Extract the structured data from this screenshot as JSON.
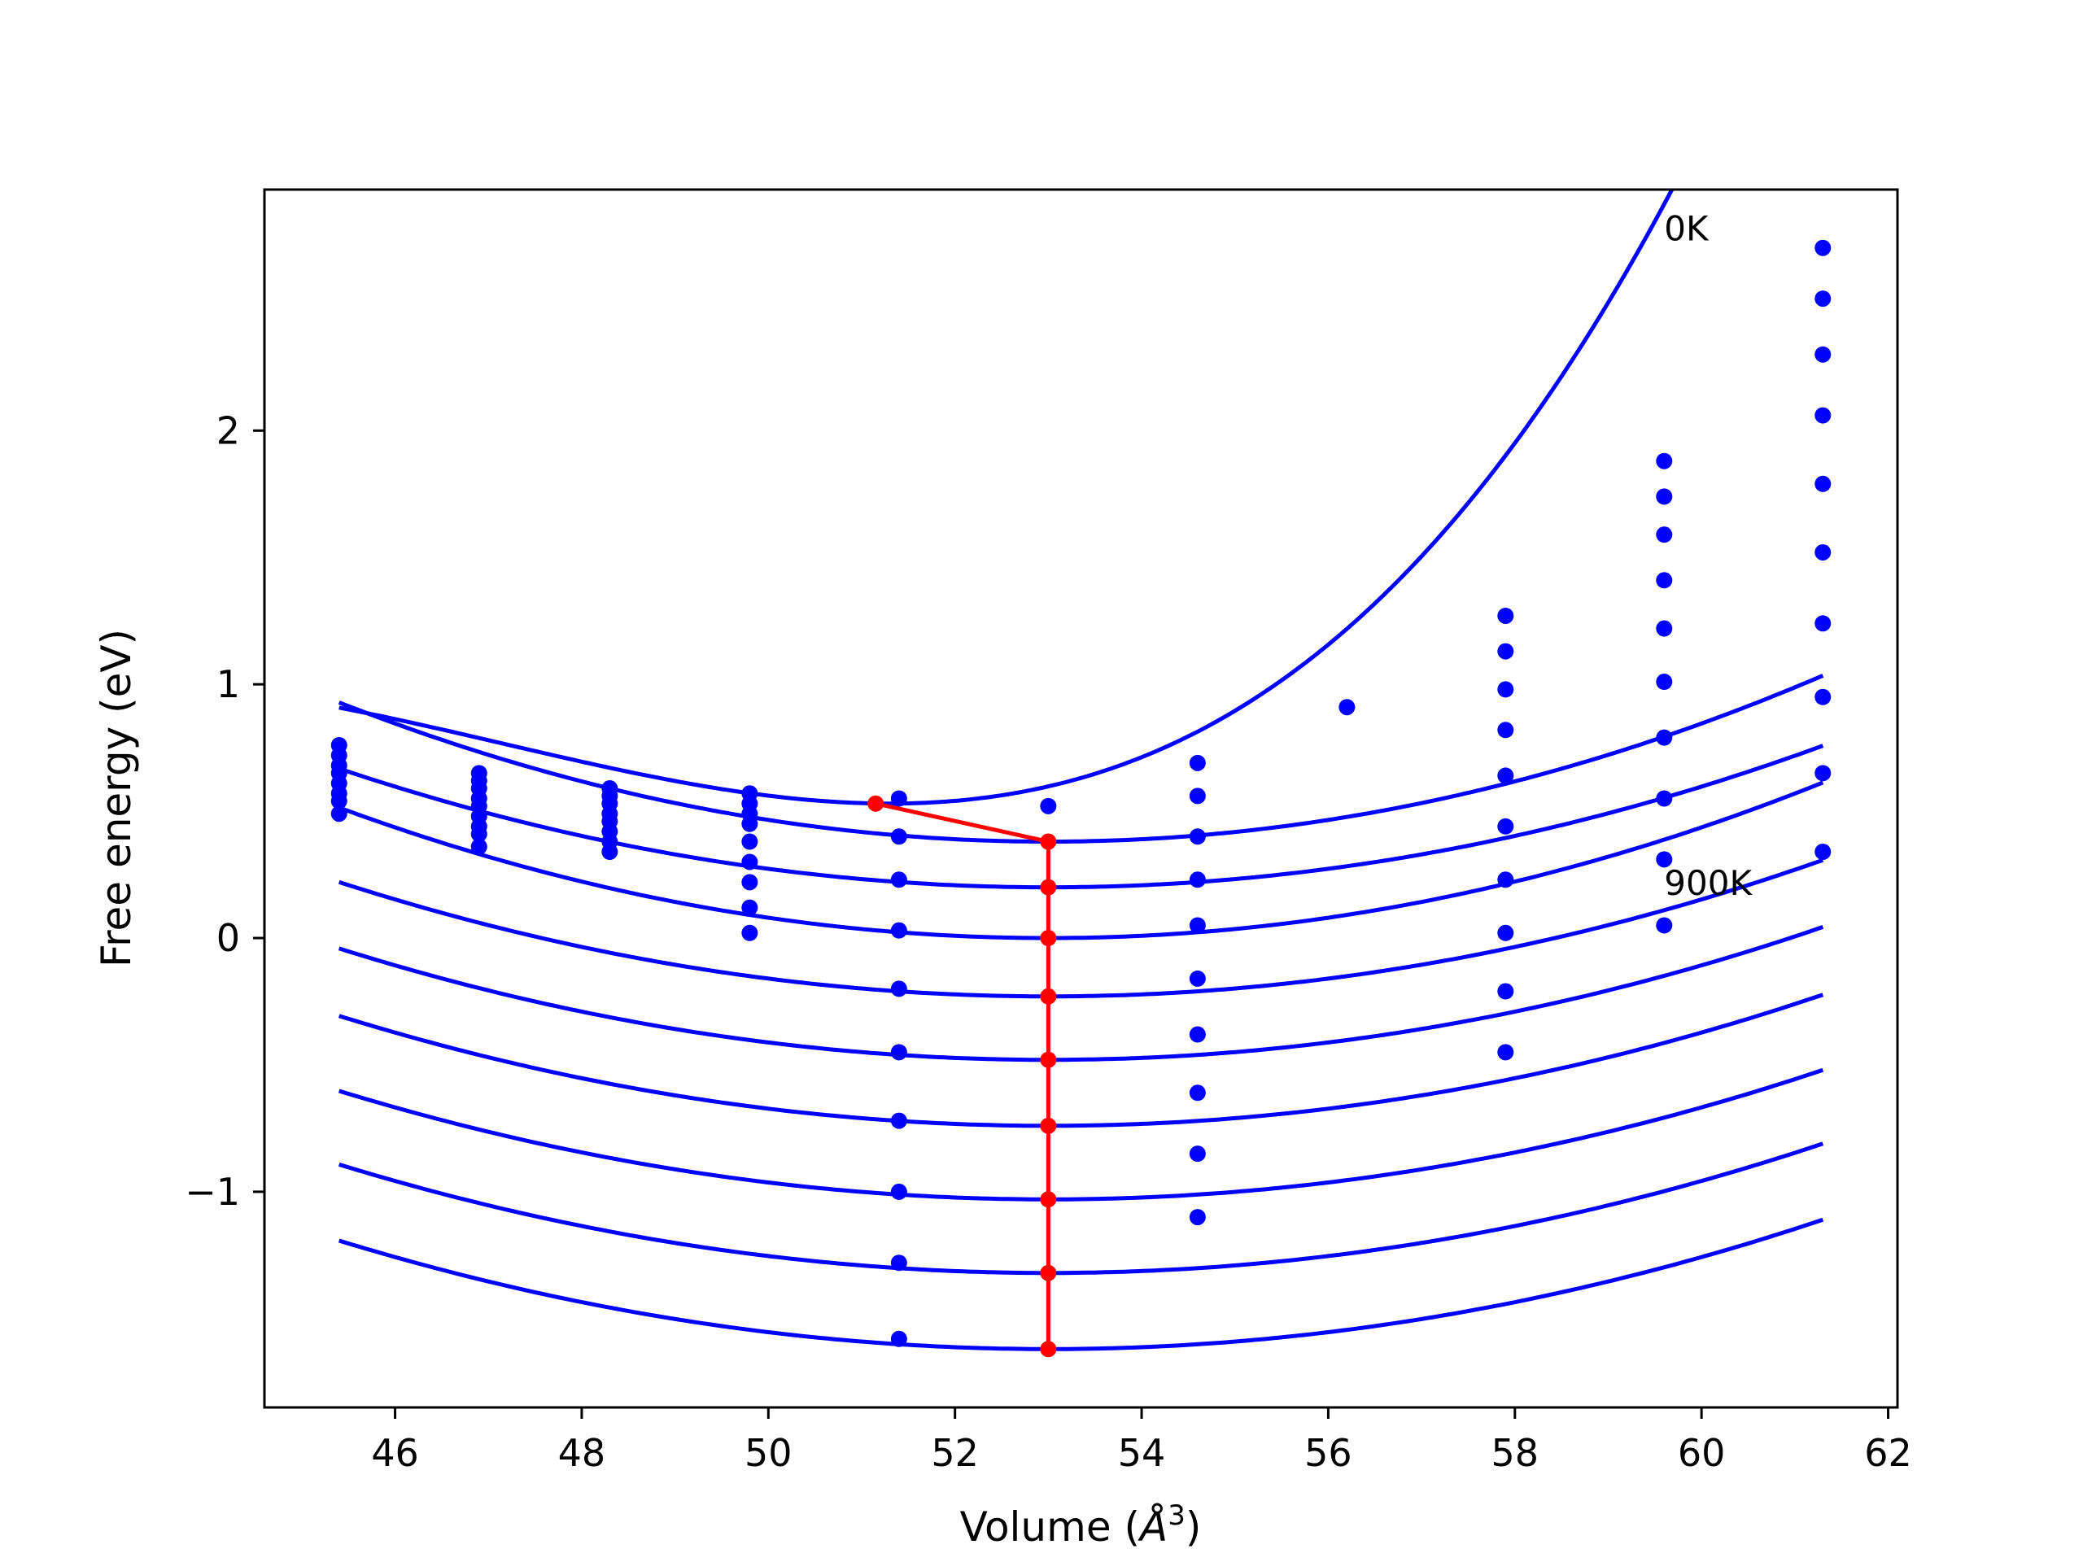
{
  "chart_data": {
    "type": "line",
    "title": "",
    "xlabel": "Volume (",
    "xlabel_symbol": "Å",
    "xlabel_exp": "3",
    "xlabel_close": ")",
    "ylabel": "Free energy (eV)",
    "xlim": [
      44.6,
      62.1
    ],
    "ylim": [
      -1.85,
      2.95
    ],
    "xticks": [
      46,
      48,
      50,
      52,
      54,
      56,
      58,
      60,
      62
    ],
    "yticks": [
      -1,
      0,
      1,
      2
    ],
    "grid": false,
    "legend": "none",
    "colors": {
      "fit": "#0000ff",
      "points": "#0000ff",
      "min_path": "#ff0000",
      "axes": "#000000"
    },
    "annotations": [
      {
        "text": "0K",
        "x": 59.6,
        "y": 2.75
      },
      {
        "text": "900K",
        "x": 59.6,
        "y": 0.17
      }
    ],
    "fit_x_range": [
      45.4,
      61.3
    ],
    "fits": [
      {
        "v0": 51.3,
        "e0": 0.53,
        "a": 0.0206,
        "b": 0.00165
      },
      {
        "v0": 53.0,
        "e0": 0.38,
        "a": 0.0095,
        "b": 0.0
      },
      {
        "v0": 53.0,
        "e0": 0.2,
        "a": 0.0081,
        "b": 0.0
      },
      {
        "v0": 53.0,
        "e0": 0.0,
        "a": 0.0089,
        "b": 0.0
      },
      {
        "v0": 53.0,
        "e0": -0.23,
        "a": 0.0078,
        "b": 0.0
      },
      {
        "v0": 53.0,
        "e0": -0.48,
        "a": 0.0076,
        "b": 0.0
      },
      {
        "v0": 53.0,
        "e0": -0.74,
        "a": 0.0075,
        "b": 0.0
      },
      {
        "v0": 53.0,
        "e0": -1.03,
        "a": 0.0074,
        "b": 0.0
      },
      {
        "v0": 53.0,
        "e0": -1.32,
        "a": 0.0074,
        "b": 0.0
      },
      {
        "v0": 53.0,
        "e0": -1.62,
        "a": 0.0074,
        "b": 0.0
      }
    ],
    "point_columns": [
      {
        "x": 45.4,
        "y": [
          0.76,
          0.72,
          0.68,
          0.65,
          0.61,
          0.57,
          0.54,
          0.49
        ]
      },
      {
        "x": 46.9,
        "y": [
          0.65,
          0.62,
          0.59,
          0.55,
          0.52,
          0.48,
          0.44,
          0.41,
          0.36
        ]
      },
      {
        "x": 48.3,
        "y": [
          0.59,
          0.56,
          0.53,
          0.49,
          0.46,
          0.42,
          0.38,
          0.34
        ]
      },
      {
        "x": 49.8,
        "y": [
          0.57,
          0.53,
          0.49,
          0.45,
          0.38,
          0.3,
          0.22,
          0.12,
          0.02
        ]
      },
      {
        "x": 51.4,
        "y": [
          0.55,
          0.4,
          0.23,
          0.03,
          -0.2,
          -0.45,
          -0.72,
          -1.0,
          -1.28,
          -1.58
        ]
      },
      {
        "x": 53.0,
        "y": [
          0.52
        ]
      },
      {
        "x": 54.6,
        "y": [
          0.69,
          0.56,
          0.4,
          0.23,
          0.05,
          -0.16,
          -0.38,
          -0.61,
          -0.85,
          -1.1
        ]
      },
      {
        "x": 56.2,
        "y": [
          0.91
        ]
      },
      {
        "x": 57.9,
        "y": [
          1.27,
          1.13,
          0.98,
          0.82,
          0.64,
          0.44,
          0.23,
          0.02,
          -0.21,
          -0.45
        ]
      },
      {
        "x": 59.6,
        "y": [
          1.88,
          1.74,
          1.59,
          1.41,
          1.22,
          1.01,
          0.79,
          0.55,
          0.31,
          0.05
        ]
      },
      {
        "x": 61.3,
        "y": [
          2.72,
          2.52,
          2.3,
          2.06,
          1.79,
          1.52,
          1.24,
          0.95,
          0.65,
          0.34
        ]
      }
    ],
    "min_path": [
      {
        "x": 51.15,
        "y": 0.53
      },
      {
        "x": 53.0,
        "y": 0.38
      },
      {
        "x": 53.0,
        "y": 0.2
      },
      {
        "x": 53.0,
        "y": 0.0
      },
      {
        "x": 53.0,
        "y": -0.23
      },
      {
        "x": 53.0,
        "y": -0.48
      },
      {
        "x": 53.0,
        "y": -0.74
      },
      {
        "x": 53.0,
        "y": -1.03
      },
      {
        "x": 53.0,
        "y": -1.32
      },
      {
        "x": 53.0,
        "y": -1.62
      }
    ]
  }
}
